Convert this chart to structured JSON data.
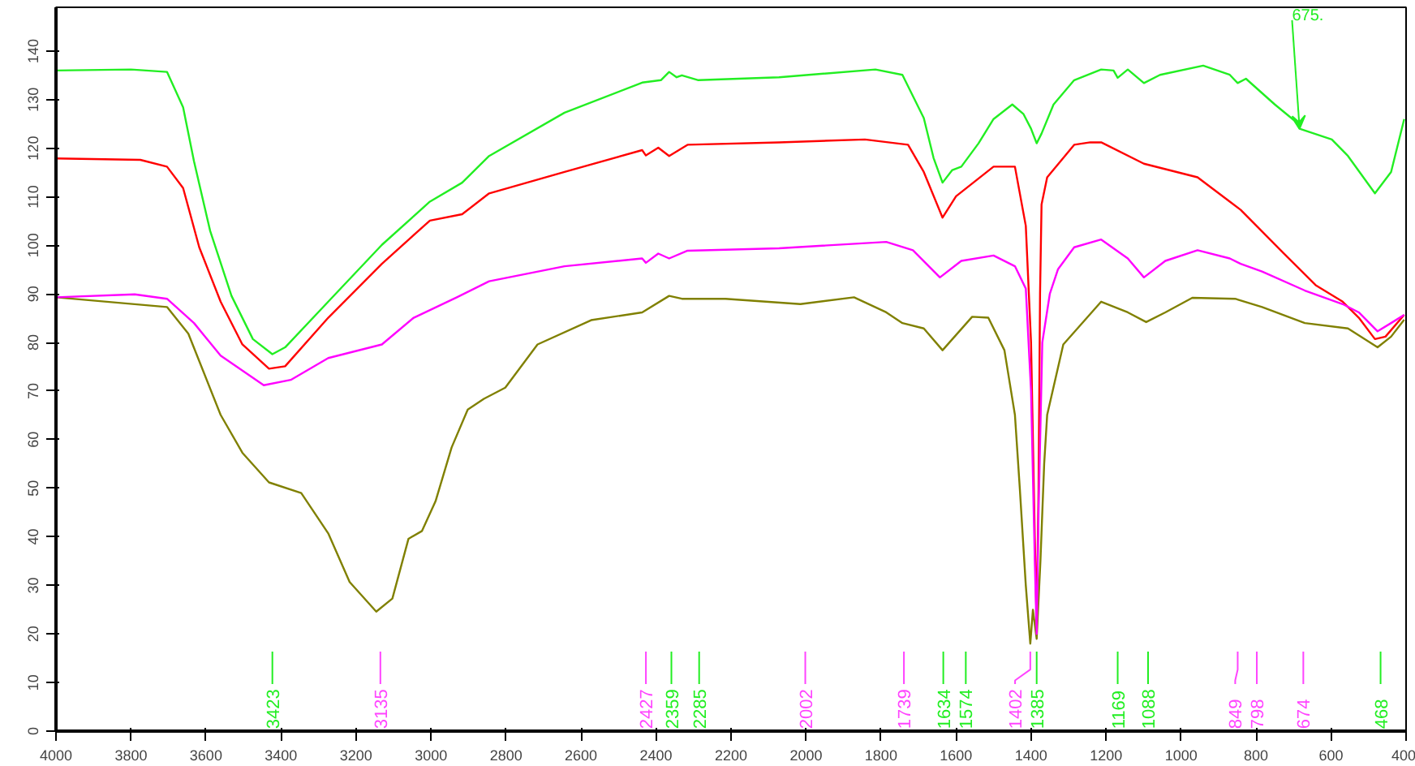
{
  "chart_data": {
    "type": "line",
    "xlim": [
      4000,
      400
    ],
    "ylim": [
      0,
      149
    ],
    "xticks": [
      4000,
      3800,
      3600,
      3400,
      3200,
      3000,
      2800,
      2600,
      2400,
      2200,
      2000,
      1800,
      1600,
      1400,
      1200,
      1000,
      800,
      600,
      400
    ],
    "yticks": [
      0,
      10,
      20,
      30,
      40,
      50,
      60,
      70,
      80,
      90,
      100,
      110,
      120,
      130,
      140
    ],
    "grid": false,
    "series": [
      {
        "color": "#22ee22",
        "x": [
          4000,
          3800,
          3704,
          3661,
          3632,
          3589,
          3532,
          3475,
          3423,
          3389,
          3274,
          3131,
          3003,
          2917,
          2845,
          2644,
          2437,
          2387,
          2365,
          2345,
          2331,
          2287,
          2072,
          1815,
          1743,
          1686,
          1660,
          1636,
          1610,
          1586,
          1540,
          1500,
          1450,
          1420,
          1400,
          1385,
          1372,
          1340,
          1285,
          1213,
          1180,
          1169,
          1142,
          1099,
          1056,
          941,
          870,
          849,
          827,
          750,
          698,
          684,
          598,
          555,
          483,
          440,
          405
        ],
        "values": [
          136,
          136.2,
          135.7,
          128.4,
          117.3,
          103,
          89.6,
          80.7,
          77.6,
          79,
          88.4,
          100.1,
          109,
          112.9,
          118.4,
          127.3,
          133.5,
          134,
          135.7,
          134.6,
          135,
          134,
          134.6,
          136.2,
          135.1,
          126.2,
          118,
          112.9,
          115.5,
          116.2,
          121,
          126,
          129,
          127,
          124,
          121,
          123,
          129,
          134,
          136.2,
          136,
          134.5,
          136.2,
          133.4,
          135.1,
          137,
          135.1,
          133.4,
          134.3,
          129,
          125.7,
          124,
          121.8,
          118.4,
          110.7,
          115.1,
          126
        ]
      },
      {
        "color": "#ff0000",
        "x": [
          4000,
          3775,
          3704,
          3661,
          3618,
          3561,
          3503,
          3432,
          3389,
          3274,
          3131,
          3003,
          2917,
          2845,
          2644,
          2437,
          2427,
          2394,
          2365,
          2316,
          2072,
          1843,
          1728,
          1686,
          1636,
          1600,
          1500,
          1443,
          1414,
          1400,
          1390,
          1385,
          1380,
          1376,
          1372,
          1357,
          1285,
          1242,
          1213,
          1099,
          956,
          870,
          841,
          727,
          641,
          569,
          526,
          483,
          455,
          405
        ],
        "values": [
          117.9,
          117.6,
          116.2,
          111.8,
          99.6,
          88.4,
          79.6,
          74.6,
          75.1,
          85.1,
          96.2,
          105.1,
          106.4,
          110.7,
          115.1,
          119.6,
          118.5,
          120.1,
          118.4,
          120.7,
          121.2,
          121.8,
          120.7,
          115.1,
          105.7,
          110.1,
          116.2,
          116.2,
          104,
          80,
          40,
          22,
          50,
          90,
          108.4,
          114,
          120.7,
          121.2,
          121.2,
          116.8,
          114,
          109,
          107.3,
          98.4,
          91.8,
          88.4,
          85.1,
          80.7,
          81.2,
          85.7
        ]
      },
      {
        "color": "#ff00ff",
        "x": [
          4000,
          3790,
          3704,
          3632,
          3561,
          3446,
          3374,
          3274,
          3131,
          3046,
          2931,
          2845,
          2644,
          2437,
          2427,
          2394,
          2365,
          2316,
          2072,
          1786,
          1715,
          1643,
          1586,
          1500,
          1443,
          1414,
          1400,
          1390,
          1385,
          1380,
          1370,
          1350,
          1328,
          1285,
          1213,
          1142,
          1099,
          1042,
          956,
          870,
          841,
          784,
          670,
          569,
          526,
          476,
          440,
          405
        ],
        "values": [
          89.3,
          89.9,
          89,
          84,
          77.3,
          71.2,
          72.3,
          76.8,
          79.6,
          85.1,
          89.3,
          92.6,
          95.7,
          97.3,
          96.4,
          98.3,
          97.3,
          98.9,
          99.4,
          100.7,
          99,
          93.4,
          96.8,
          97.9,
          95.7,
          91.1,
          70,
          35,
          20,
          45,
          80,
          90,
          95.1,
          99.6,
          101.2,
          97.3,
          93.4,
          96.8,
          99,
          97.3,
          96.2,
          94.6,
          90.7,
          87.9,
          86.2,
          82.3,
          84,
          85.7
        ]
      },
      {
        "color": "#808000",
        "x": [
          4000,
          3704,
          3647,
          3561,
          3503,
          3432,
          3346,
          3274,
          3217,
          3146,
          3103,
          3060,
          3024,
          2988,
          2945,
          2902,
          2859,
          2802,
          2716,
          2573,
          2437,
          2365,
          2331,
          2215,
          2015,
          1872,
          1786,
          1743,
          1686,
          1636,
          1557,
          1514,
          1471,
          1443,
          1430,
          1414,
          1402,
          1395,
          1385,
          1375,
          1365,
          1357,
          1314,
          1213,
          1142,
          1093,
          1042,
          970,
          856,
          784,
          670,
          555,
          476,
          440,
          405
        ],
        "values": [
          89.3,
          87.3,
          81.8,
          65.1,
          57.3,
          51.2,
          49,
          40.7,
          30.7,
          24.6,
          27.3,
          39.6,
          41.2,
          47.3,
          58.4,
          66.2,
          68.4,
          70.7,
          79.6,
          84.6,
          86.2,
          89.6,
          89,
          89,
          87.9,
          89.3,
          86.2,
          84,
          82.9,
          78.4,
          85.3,
          85.1,
          78.4,
          65.1,
          50,
          30,
          18,
          25,
          19,
          35,
          55,
          65.1,
          79.6,
          88.4,
          86.2,
          84.2,
          86.2,
          89.2,
          89,
          87.3,
          84,
          82.9,
          79,
          81.2,
          84.7
        ]
      }
    ],
    "ref_lines": [
      {
        "axis": "x",
        "value": 3423,
        "label": "3423",
        "color": "#22ee22"
      },
      {
        "axis": "x",
        "value": 3135,
        "label": "3135",
        "color": "#ff44ff"
      },
      {
        "axis": "x",
        "value": 2427,
        "label": "2427",
        "color": "#ff44ff"
      },
      {
        "axis": "x",
        "value": 2359,
        "label": "2359",
        "color": "#22ee22"
      },
      {
        "axis": "x",
        "value": 2285,
        "label": "2285",
        "color": "#22ee22"
      },
      {
        "axis": "x",
        "value": 2002,
        "label": "2002",
        "color": "#ff44ff"
      },
      {
        "axis": "x",
        "value": 1739,
        "label": "1739",
        "color": "#ff44ff"
      },
      {
        "axis": "x",
        "value": 1634,
        "label": "1634",
        "color": "#22ee22"
      },
      {
        "axis": "x",
        "value": 1574,
        "label": "1574",
        "color": "#22ee22"
      },
      {
        "axis": "x",
        "value": 1402,
        "label": "1402",
        "color": "#ff44ff"
      },
      {
        "axis": "x",
        "value": 1385,
        "label": "1385",
        "color": "#22ee22"
      },
      {
        "axis": "x",
        "value": 1169,
        "label": "1169",
        "color": "#22ee22"
      },
      {
        "axis": "x",
        "value": 1088,
        "label": "1088",
        "color": "#22ee22"
      },
      {
        "axis": "x",
        "value": 849,
        "label": "849",
        "color": "#ff44ff"
      },
      {
        "axis": "x",
        "value": 798,
        "label": "798",
        "color": "#ff44ff"
      },
      {
        "axis": "x",
        "value": 674,
        "label": "674",
        "color": "#ff44ff"
      },
      {
        "axis": "x",
        "value": 468,
        "label": "468",
        "color": "#22ee22"
      }
    ],
    "annotations": [
      {
        "text": "675.",
        "x": 684,
        "y": 124
      }
    ]
  }
}
